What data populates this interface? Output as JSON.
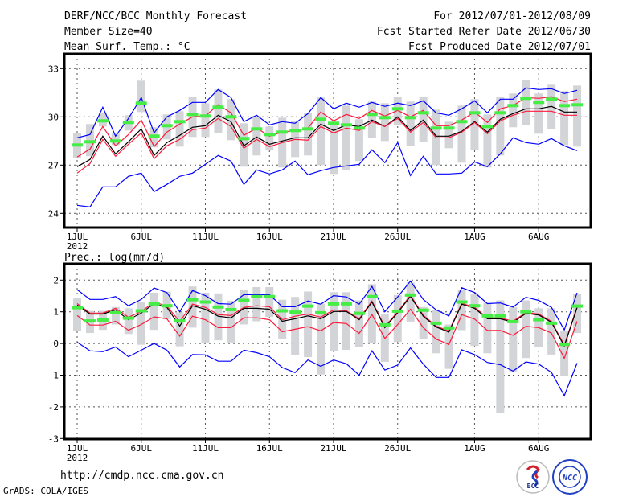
{
  "header": {
    "title": "DERF/NCC/BCC Monthly Forecast",
    "member_size": "Member Size=40",
    "variable": "Mean Surf. Temp.: °C",
    "period": "For 2012/07/01-2012/08/09",
    "started": "Fcst Started Refer Date 2012/06/30",
    "produced": "Fcst Produced Date 2012/07/01"
  },
  "footer": {
    "url": "http://cmdp.ncc.cma.gov.cn",
    "credit": "GrADS: COLA/IGES",
    "logo_bcc": "BCC",
    "logo_ncc": "NCC"
  },
  "colors": {
    "max_min": "#0000ff",
    "band": "#ff1a3c",
    "mean": "#000000",
    "marker": "#44ee44",
    "spread": "#d3d4d8"
  },
  "chart_data": [
    {
      "type": "line",
      "title": "Mean Surf. Temp.: °C",
      "xlabel": "",
      "ylabel": "",
      "ylim": [
        22.5,
        34
      ],
      "yticks": [
        24,
        27,
        30,
        33
      ],
      "xticks": [
        {
          "day": 0,
          "label": "1JUL"
        },
        {
          "day": 5,
          "label": "6JUL"
        },
        {
          "day": 10,
          "label": "11JUL"
        },
        {
          "day": 15,
          "label": "16JUL"
        },
        {
          "day": 20,
          "label": "21JUL"
        },
        {
          "day": 25,
          "label": "26JUL"
        },
        {
          "day": 31,
          "label": "1AUG"
        },
        {
          "day": 36,
          "label": "6AUG"
        }
      ],
      "year_label": "2012",
      "grid": true,
      "series": [
        {
          "name": "max",
          "color": "#0000ff",
          "values": [
            28.7,
            28.9,
            30.6,
            28.8,
            29.9,
            31.2,
            29.0,
            30.0,
            30.4,
            30.9,
            30.9,
            31.7,
            31.2,
            29.7,
            30.1,
            29.5,
            29.7,
            29.6,
            30.2,
            31.2,
            30.5,
            30.85,
            30.6,
            30.9,
            30.65,
            30.85,
            30.7,
            31.0,
            30.25,
            30.1,
            30.5,
            31.0,
            30.25,
            31.1,
            31.1,
            31.8,
            31.7,
            31.75,
            31.45,
            31.65
          ]
        },
        {
          "name": "upper",
          "color": "#ff1a3c",
          "values": [
            27.5,
            28.0,
            29.4,
            28.2,
            28.9,
            29.8,
            28.15,
            29.05,
            29.55,
            30.0,
            30.05,
            30.75,
            30.25,
            28.85,
            29.3,
            28.8,
            29.05,
            29.15,
            29.3,
            30.3,
            29.75,
            30.15,
            29.9,
            30.4,
            30.05,
            30.4,
            30.0,
            30.4,
            29.45,
            29.45,
            29.8,
            30.3,
            29.65,
            30.5,
            30.7,
            31.2,
            31.15,
            31.25,
            30.95,
            31.1
          ]
        },
        {
          "name": "mean",
          "color": "#000000",
          "values": [
            26.9,
            27.35,
            28.8,
            27.7,
            28.45,
            29.25,
            27.6,
            28.4,
            28.85,
            29.35,
            29.45,
            30.1,
            29.7,
            28.2,
            28.75,
            28.3,
            28.5,
            28.7,
            28.7,
            29.55,
            29.15,
            29.5,
            29.4,
            29.8,
            29.4,
            30.0,
            29.15,
            29.8,
            28.8,
            28.8,
            29.1,
            29.7,
            29.05,
            29.85,
            30.2,
            30.5,
            30.5,
            30.65,
            30.3,
            30.3
          ]
        },
        {
          "name": "lower",
          "color": "#ff1a3c",
          "values": [
            26.5,
            27.1,
            28.6,
            27.55,
            28.3,
            29.0,
            27.4,
            28.2,
            28.6,
            29.2,
            29.3,
            29.9,
            29.4,
            28.05,
            28.6,
            28.15,
            28.4,
            28.6,
            28.55,
            29.4,
            29.0,
            29.3,
            29.15,
            29.7,
            29.4,
            29.9,
            29.05,
            29.65,
            28.7,
            28.7,
            29.05,
            29.65,
            28.95,
            29.75,
            30.1,
            30.35,
            30.35,
            30.35,
            30.1,
            30.1
          ]
        },
        {
          "name": "min",
          "color": "#0000ff",
          "values": [
            24.5,
            24.4,
            25.65,
            25.65,
            26.3,
            26.5,
            25.35,
            25.8,
            26.3,
            26.5,
            27.05,
            27.6,
            27.25,
            25.8,
            26.7,
            26.45,
            26.7,
            27.25,
            26.4,
            26.65,
            26.85,
            26.95,
            27.05,
            27.95,
            27.15,
            28.4,
            26.35,
            27.55,
            26.45,
            26.45,
            26.5,
            27.2,
            26.9,
            27.7,
            28.7,
            28.4,
            28.3,
            28.65,
            28.2,
            27.9
          ]
        }
      ],
      "markers": [
        28.25,
        28.45,
        29.75,
        28.5,
        29.65,
        30.85,
        28.8,
        29.45,
        29.7,
        30.15,
        30.05,
        30.6,
        30.0,
        28.65,
        29.25,
        28.9,
        29.05,
        29.15,
        29.25,
        29.85,
        29.6,
        29.5,
        29.3,
        30.15,
        29.95,
        30.5,
        29.95,
        30.25,
        29.3,
        29.3,
        29.7,
        30.25,
        29.4,
        30.25,
        30.7,
        31.15,
        30.9,
        31.1,
        30.7,
        30.75
      ],
      "spread": [
        [
          29.0,
          27.45
        ],
        [
          29.55,
          27.55
        ],
        [
          30.25,
          29.4
        ],
        [
          28.95,
          28.25
        ],
        [
          30.1,
          29.15
        ],
        [
          32.25,
          30.3
        ],
        [
          29.35,
          28.1
        ],
        [
          30.15,
          28.6
        ],
        [
          30.35,
          28.15
        ],
        [
          31.25,
          28.75
        ],
        [
          30.85,
          28.75
        ],
        [
          31.7,
          29.0
        ],
        [
          31.1,
          28.55
        ],
        [
          29.6,
          26.9
        ],
        [
          30.0,
          27.6
        ],
        [
          29.4,
          27.95
        ],
        [
          29.95,
          26.85
        ],
        [
          29.75,
          27.5
        ],
        [
          30.25,
          27.6
        ],
        [
          31.2,
          27.0
        ],
        [
          29.7,
          26.45
        ],
        [
          30.7,
          26.7
        ],
        [
          29.85,
          27.25
        ],
        [
          30.95,
          28.7
        ],
        [
          30.85,
          28.5
        ],
        [
          31.25,
          29.5
        ],
        [
          30.95,
          28.2
        ],
        [
          31.25,
          28.45
        ],
        [
          30.45,
          27.0
        ],
        [
          29.7,
          28.05
        ],
        [
          30.7,
          27.15
        ],
        [
          31.1,
          27.95
        ],
        [
          30.15,
          26.85
        ],
        [
          31.25,
          27.6
        ],
        [
          31.45,
          29.35
        ],
        [
          32.3,
          29.5
        ],
        [
          31.45,
          28.95
        ],
        [
          32.0,
          29.25
        ],
        [
          31.6,
          28.25
        ],
        [
          31.95,
          28.15
        ]
      ]
    },
    {
      "type": "line",
      "title": "Prec.: log(mm/d)",
      "xlabel": "",
      "ylabel": "",
      "ylim": [
        -3,
        2.5
      ],
      "yticks": [
        -3,
        -2,
        -1,
        0,
        1,
        2
      ],
      "xticks": [
        {
          "day": 0,
          "label": "1JUL"
        },
        {
          "day": 5,
          "label": "6JUL"
        },
        {
          "day": 10,
          "label": "11JUL"
        },
        {
          "day": 15,
          "label": "16JUL"
        },
        {
          "day": 20,
          "label": "21JUL"
        },
        {
          "day": 25,
          "label": "26JUL"
        },
        {
          "day": 31,
          "label": "1AUG"
        },
        {
          "day": 36,
          "label": "6AUG"
        }
      ],
      "year_label": "2012",
      "grid": true,
      "series": [
        {
          "name": "max",
          "color": "#0000ff",
          "values": [
            1.7,
            1.39,
            1.39,
            1.48,
            1.19,
            1.39,
            1.75,
            1.61,
            1.0,
            1.67,
            1.51,
            1.26,
            1.24,
            1.54,
            1.54,
            1.54,
            1.16,
            1.16,
            1.34,
            1.24,
            1.51,
            1.47,
            1.24,
            1.8,
            1.0,
            1.47,
            1.97,
            1.39,
            1.06,
            0.87,
            1.76,
            1.61,
            1.26,
            1.28,
            1.15,
            1.46,
            1.36,
            1.14,
            0.43,
            1.6
          ]
        },
        {
          "name": "upper",
          "color": "#ff1a3c",
          "values": [
            1.26,
            0.96,
            0.96,
            1.11,
            0.83,
            1.01,
            1.31,
            1.18,
            0.69,
            1.24,
            1.14,
            0.91,
            0.88,
            1.14,
            1.19,
            1.16,
            0.75,
            0.86,
            0.93,
            0.83,
            1.06,
            1.03,
            0.78,
            1.34,
            0.53,
            1.0,
            1.52,
            0.89,
            0.55,
            0.39,
            1.27,
            1.14,
            0.81,
            0.81,
            0.7,
            0.98,
            0.93,
            0.7,
            -0.05,
            1.16
          ]
        },
        {
          "name": "mean",
          "color": "#000000",
          "values": [
            1.21,
            0.93,
            0.93,
            1.06,
            0.75,
            0.96,
            1.26,
            1.14,
            0.55,
            1.19,
            1.08,
            0.86,
            0.81,
            1.11,
            1.11,
            1.08,
            0.7,
            0.78,
            0.87,
            0.78,
            1.01,
            1.01,
            0.75,
            1.31,
            0.5,
            0.97,
            1.49,
            0.86,
            0.52,
            0.36,
            1.24,
            1.11,
            0.78,
            0.78,
            0.67,
            0.95,
            0.9,
            0.67,
            -0.08,
            1.13
          ]
        },
        {
          "name": "lower",
          "color": "#ff1a3c",
          "values": [
            0.88,
            0.58,
            0.58,
            0.7,
            0.42,
            0.6,
            0.84,
            0.78,
            0.23,
            0.86,
            0.75,
            0.5,
            0.5,
            0.81,
            0.81,
            0.75,
            0.37,
            0.45,
            0.53,
            0.4,
            0.66,
            0.63,
            0.32,
            0.91,
            0.16,
            0.6,
            1.08,
            0.5,
            0.14,
            -0.03,
            0.91,
            0.77,
            0.41,
            0.41,
            0.26,
            0.54,
            0.5,
            0.33,
            -0.47,
            0.7
          ]
        },
        {
          "name": "min",
          "color": "#0000ff",
          "values": [
            0.04,
            -0.23,
            -0.26,
            -0.11,
            -0.42,
            -0.21,
            0.0,
            -0.21,
            -0.74,
            -0.35,
            -0.36,
            -0.56,
            -0.56,
            -0.21,
            -0.29,
            -0.42,
            -0.76,
            -0.92,
            -0.52,
            -0.72,
            -0.52,
            -0.64,
            -1.0,
            -0.23,
            -0.84,
            -0.68,
            -0.14,
            -0.65,
            -1.07,
            -1.07,
            -0.2,
            -0.35,
            -0.6,
            -0.67,
            -0.87,
            -0.58,
            -0.65,
            -0.91,
            -1.65,
            -0.62
          ]
        }
      ],
      "markers": [
        1.13,
        0.71,
        0.74,
        0.97,
        0.8,
        1.03,
        1.25,
        1.19,
        0.71,
        1.38,
        1.31,
        1.15,
        1.07,
        1.36,
        1.48,
        1.48,
        1.03,
        0.99,
        1.18,
        0.97,
        1.25,
        1.25,
        0.95,
        1.48,
        0.59,
        1.02,
        1.53,
        1.05,
        0.64,
        0.49,
        1.31,
        1.19,
        0.87,
        0.87,
        0.69,
        1.0,
        0.75,
        0.64,
        -0.03,
        1.18
      ],
      "spread": [
        [
          1.42,
          0.39
        ],
        [
          1.03,
          0.33
        ],
        [
          1.03,
          0.43
        ],
        [
          1.15,
          0.6
        ],
        [
          1.11,
          0.3
        ],
        [
          1.3,
          -0.04
        ],
        [
          1.6,
          0.43
        ],
        [
          1.64,
          0.77
        ],
        [
          0.98,
          -0.09
        ],
        [
          1.8,
          0.5
        ],
        [
          1.6,
          0.03
        ],
        [
          1.58,
          0.1
        ],
        [
          1.35,
          0.03
        ],
        [
          1.68,
          0.6
        ],
        [
          1.78,
          0.7
        ],
        [
          1.78,
          0.84
        ],
        [
          1.38,
          0.13
        ],
        [
          1.47,
          -0.36
        ],
        [
          1.64,
          -0.43
        ],
        [
          1.26,
          -0.98
        ],
        [
          1.62,
          -0.23
        ],
        [
          1.62,
          -0.2
        ],
        [
          1.36,
          -0.12
        ],
        [
          1.87,
          0.0
        ],
        [
          0.94,
          -0.58
        ],
        [
          1.53,
          0.05
        ],
        [
          1.92,
          0.69
        ],
        [
          1.15,
          0.14
        ],
        [
          1.07,
          -0.31
        ],
        [
          0.6,
          -0.8
        ],
        [
          1.7,
          0.42
        ],
        [
          1.58,
          -0.08
        ],
        [
          1.28,
          -0.31
        ],
        [
          1.36,
          -2.18
        ],
        [
          1.15,
          -0.88
        ],
        [
          1.36,
          -0.46
        ],
        [
          1.11,
          -0.12
        ],
        [
          1.11,
          -0.35
        ],
        [
          0.39,
          -1.03
        ],
        [
          1.55,
          0.33
        ]
      ]
    }
  ]
}
